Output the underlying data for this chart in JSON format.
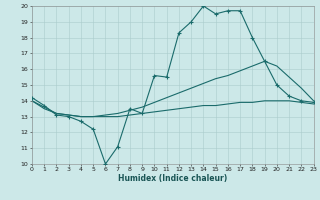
{
  "xlabel": "Humidex (Indice chaleur)",
  "bg_color": "#cce8e8",
  "grid_color": "#aacccc",
  "line_color": "#1a6b6b",
  "xlim": [
    0,
    23
  ],
  "ylim": [
    10,
    20
  ],
  "xticks": [
    0,
    1,
    2,
    3,
    4,
    5,
    6,
    7,
    8,
    9,
    10,
    11,
    12,
    13,
    14,
    15,
    16,
    17,
    18,
    19,
    20,
    21,
    22,
    23
  ],
  "yticks": [
    10,
    11,
    12,
    13,
    14,
    15,
    16,
    17,
    18,
    19,
    20
  ],
  "curve1_x": [
    0,
    1,
    2,
    3,
    4,
    5,
    6,
    7,
    8,
    9,
    10,
    11,
    12,
    13,
    14,
    15,
    16,
    17,
    18,
    19,
    20,
    21,
    22,
    23
  ],
  "curve1_y": [
    14.2,
    13.7,
    13.1,
    13.0,
    12.7,
    12.2,
    10.0,
    11.1,
    13.5,
    13.2,
    15.6,
    15.5,
    18.3,
    19.0,
    20.0,
    19.5,
    19.7,
    19.7,
    18.0,
    16.5,
    15.0,
    14.3,
    14.0,
    13.9
  ],
  "curve2_x": [
    0,
    1,
    2,
    3,
    4,
    5,
    6,
    7,
    8,
    9,
    10,
    11,
    12,
    13,
    14,
    15,
    16,
    17,
    18,
    19,
    20,
    21,
    22,
    23
  ],
  "curve2_y": [
    14.0,
    13.5,
    13.2,
    13.1,
    13.0,
    13.0,
    13.0,
    13.0,
    13.1,
    13.2,
    13.3,
    13.4,
    13.5,
    13.6,
    13.7,
    13.7,
    13.8,
    13.9,
    13.9,
    14.0,
    14.0,
    14.0,
    13.9,
    13.8
  ],
  "curve3_x": [
    0,
    1,
    2,
    3,
    4,
    5,
    6,
    7,
    8,
    9,
    10,
    11,
    12,
    13,
    14,
    15,
    16,
    17,
    18,
    19,
    20,
    21,
    22,
    23
  ],
  "curve3_y": [
    14.0,
    13.6,
    13.2,
    13.1,
    13.0,
    13.0,
    13.1,
    13.2,
    13.4,
    13.6,
    13.9,
    14.2,
    14.5,
    14.8,
    15.1,
    15.4,
    15.6,
    15.9,
    16.2,
    16.5,
    16.2,
    15.5,
    14.8,
    14.0
  ]
}
